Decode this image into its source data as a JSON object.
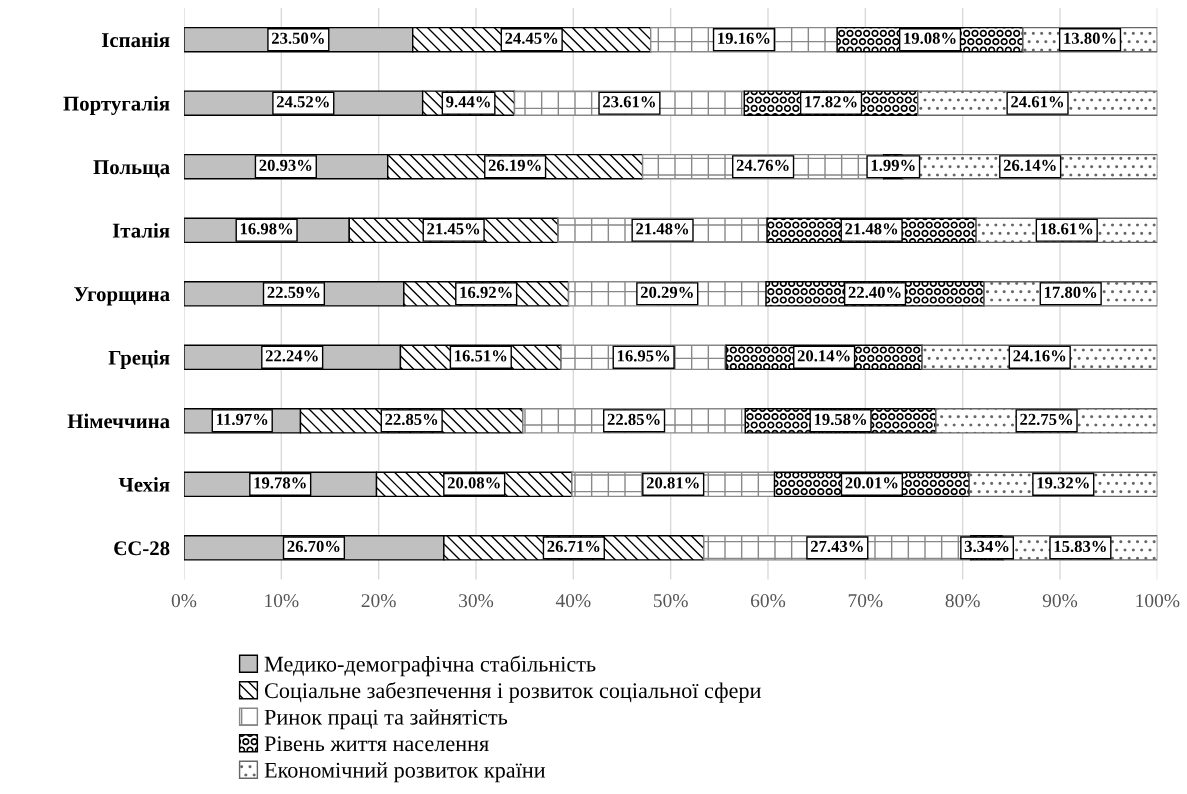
{
  "chart_data": {
    "type": "bar",
    "orientation": "horizontal",
    "stacked": true,
    "categories": [
      "Іспанія",
      "Португалія",
      "Польща",
      "Італія",
      "Угорщина",
      "Греція",
      "Німеччина",
      "Чехія",
      "ЄС-28"
    ],
    "series": [
      {
        "name": "Медико-демографічна стабільність",
        "color": "#c0c0c0",
        "values": [
          23.5,
          24.52,
          20.93,
          16.98,
          22.59,
          22.24,
          11.97,
          19.78,
          26.7
        ],
        "value_labels": [
          "23.50%",
          "24.52%",
          "20.93%",
          "16.98%",
          "22.59%",
          "22.24%",
          "11.97%",
          "19.78%",
          "26.70%"
        ]
      },
      {
        "name": "Соціальне забезпечення і розвиток соціальної сфери",
        "color": "#000000",
        "values": [
          24.45,
          9.44,
          26.19,
          21.45,
          16.92,
          16.51,
          22.85,
          20.08,
          26.71
        ],
        "value_labels": [
          "24.45%",
          "9.44%",
          "26.19%",
          "21.45%",
          "16.92%",
          "16.51%",
          "22.85%",
          "20.08%",
          "26.71%"
        ]
      },
      {
        "name": "Ринок праці та зайнятість",
        "color": "#888888",
        "values": [
          19.16,
          23.61,
          24.76,
          21.48,
          20.29,
          16.95,
          22.85,
          20.81,
          27.43
        ],
        "value_labels": [
          "19.16%",
          "23.61%",
          "24.76%",
          "21.48%",
          "20.29%",
          "16.95%",
          "22.85%",
          "20.81%",
          "27.43%"
        ]
      },
      {
        "name": "Рівень життя населення",
        "color": "#000000",
        "values": [
          19.08,
          17.82,
          1.99,
          21.48,
          22.4,
          20.14,
          19.58,
          20.01,
          3.34
        ],
        "value_labels": [
          "19.08%",
          "17.82%",
          "1.99%",
          "21.48%",
          "22.40%",
          "20.14%",
          "19.58%",
          "20.01%",
          "3.34%"
        ]
      },
      {
        "name": "Економічний розвиток країни",
        "color": "#666666",
        "values": [
          13.8,
          24.61,
          26.14,
          18.61,
          17.8,
          24.16,
          22.75,
          19.32,
          15.83
        ],
        "value_labels": [
          "13.80%",
          "24.61%",
          "26.14%",
          "18.61%",
          "17.80%",
          "24.16%",
          "22.75%",
          "19.32%",
          "15.83%"
        ]
      }
    ],
    "xlim": [
      0,
      100
    ],
    "xticks": [
      {
        "value": 0,
        "label": "0%"
      },
      {
        "value": 10,
        "label": "10%"
      },
      {
        "value": 20,
        "label": "20%"
      },
      {
        "value": 30,
        "label": "30%"
      },
      {
        "value": 40,
        "label": "40%"
      },
      {
        "value": 50,
        "label": "50%"
      },
      {
        "value": 60,
        "label": "60%"
      },
      {
        "value": 70,
        "label": "70%"
      },
      {
        "value": 80,
        "label": "80%"
      },
      {
        "value": 90,
        "label": "90%"
      },
      {
        "value": 100,
        "label": "100%"
      }
    ],
    "grid": "x",
    "legend": "bottom"
  }
}
